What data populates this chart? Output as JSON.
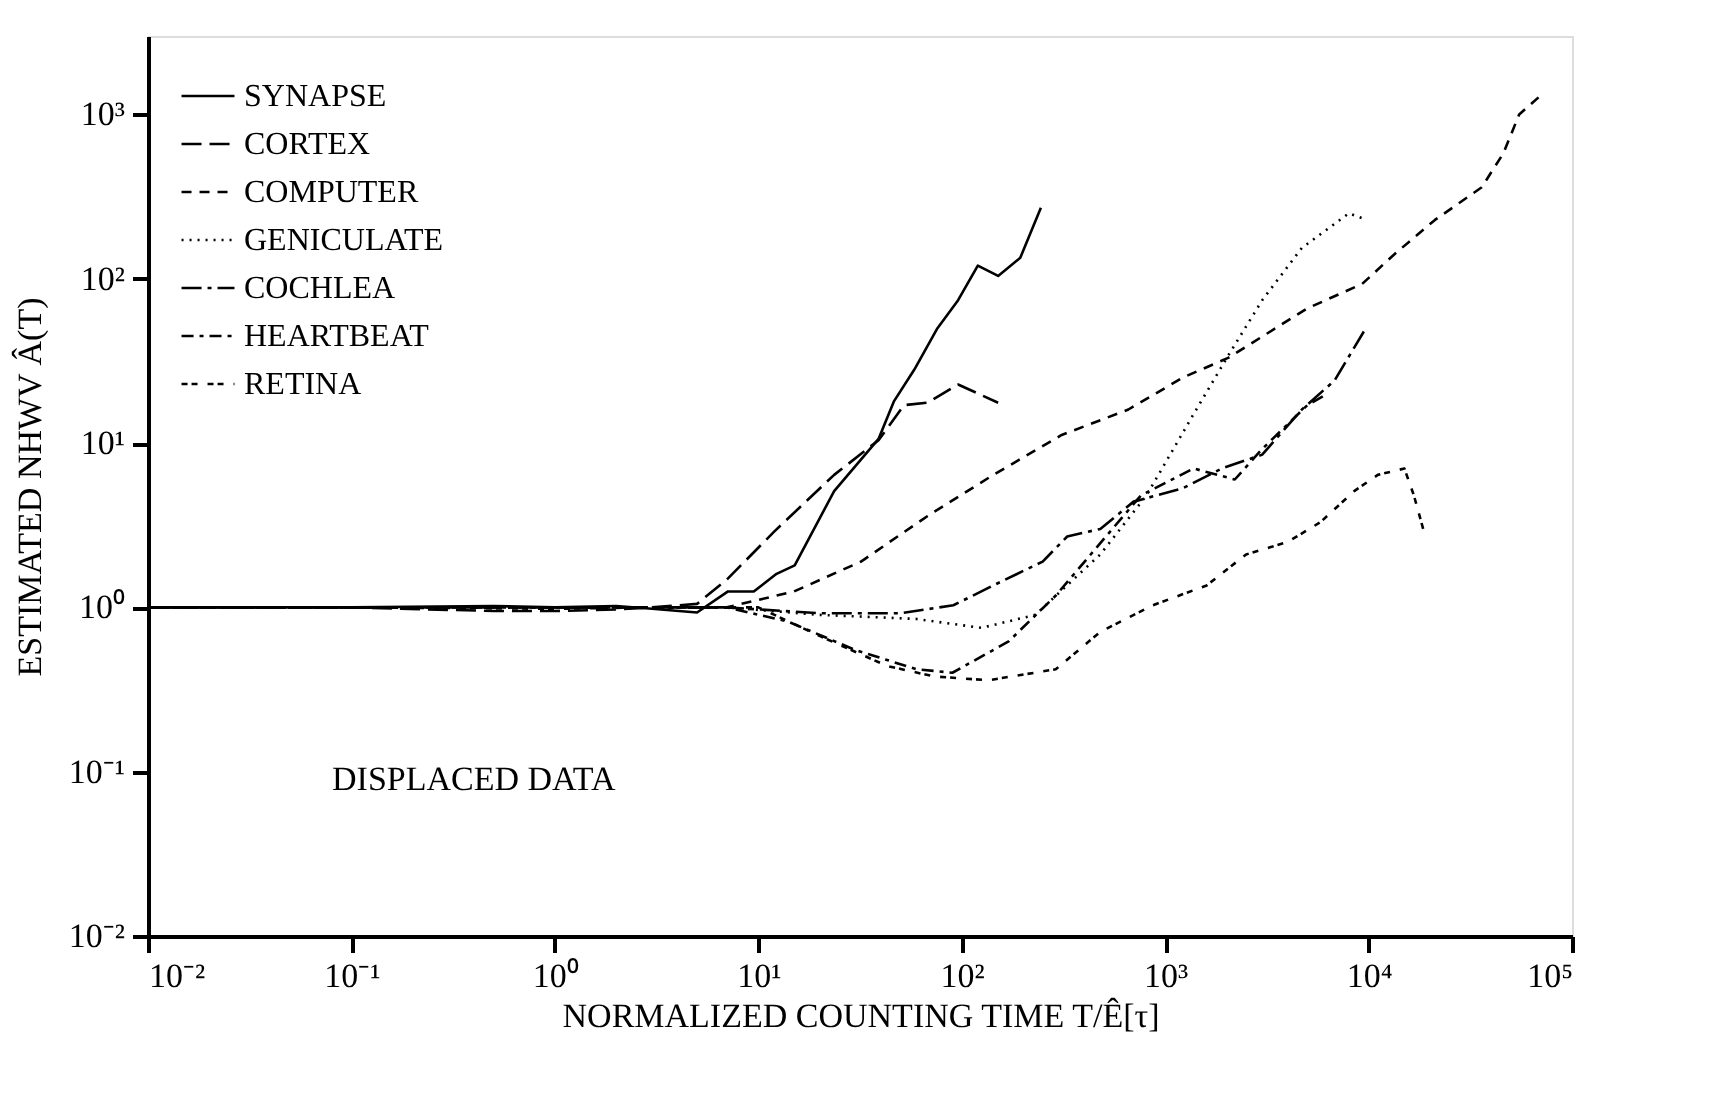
{
  "chart_data": {
    "type": "line",
    "xlabel": "NORMALIZED COUNTING TIME T/Ê[τ]",
    "ylabel": "ESTIMATED NHWV Â(T)",
    "log": "xy",
    "grid": false,
    "legend": "top left",
    "marker": "none",
    "xlim": [
      0.01,
      100000
    ],
    "ylim": [
      0.01,
      3000
    ],
    "xticks": [
      {
        "value": 0.01,
        "label": "10⁻²"
      },
      {
        "value": 0.1,
        "label": "10⁻¹"
      },
      {
        "value": 1,
        "label": "10⁰"
      },
      {
        "value": 10,
        "label": "10¹"
      },
      {
        "value": 100,
        "label": "10²"
      },
      {
        "value": 1000,
        "label": "10³"
      },
      {
        "value": 10000,
        "label": "10⁴"
      },
      {
        "value": 100000,
        "label": "10⁵"
      }
    ],
    "yticks": [
      {
        "value": 0.01,
        "label": "10⁻²"
      },
      {
        "value": 0.1,
        "label": "10⁻¹"
      },
      {
        "value": 1,
        "label": "10⁰"
      },
      {
        "value": 10,
        "label": "10¹"
      },
      {
        "value": 100,
        "label": "10²"
      },
      {
        "value": 1000,
        "label": "10³"
      }
    ],
    "annotations": [
      "DISPLACED DATA"
    ],
    "series": [
      {
        "name": "SYNAPSE",
        "color": "#000000",
        "line_style": "solid",
        "x": [
          0.01,
          0.1,
          0.5,
          1,
          2,
          3,
          5,
          7.1,
          9.5,
          12.3,
          15.1,
          23.6,
          39,
          46.5,
          58.5,
          76,
          96,
          120,
          151,
          194,
          245
        ],
        "values": [
          1,
          1,
          1.02,
          1,
          1.02,
          0.98,
          0.93,
          1.25,
          1.25,
          1.6,
          1.8,
          5.1,
          10.6,
          18,
          28,
          50,
          74,
          120,
          104,
          134,
          270
        ]
      },
      {
        "name": "CORTEX",
        "color": "#000000",
        "line_style": "dashed",
        "x": [
          0.01,
          0.1,
          0.5,
          1,
          2,
          3,
          5,
          7.1,
          12,
          23.6,
          39,
          52,
          68,
          96,
          151
        ],
        "values": [
          1,
          1,
          0.95,
          0.95,
          0.97,
          1,
          1.05,
          1.5,
          2.9,
          6.4,
          10.4,
          17,
          17.6,
          22.7,
          17.6
        ]
      },
      {
        "name": "COMPUTER",
        "color": "#000000",
        "line_style": "dashed",
        "x": [
          0.01,
          0.1,
          1,
          3,
          7,
          15,
          32,
          68,
          143,
          310,
          660,
          1220,
          2040,
          5000,
          9300,
          13400,
          21200,
          36000,
          46000,
          55000,
          70000
        ],
        "values": [
          1,
          1,
          1,
          1,
          1,
          1.25,
          1.9,
          3.6,
          6.4,
          11.2,
          16,
          25,
          33,
          66,
          93,
          141,
          228,
          360,
          580,
          1000,
          1300
        ]
      },
      {
        "name": "GENICULATE",
        "color": "#000000",
        "line_style": "dotted",
        "x": [
          0.01,
          0.1,
          1,
          3,
          7,
          20,
          60,
          125,
          230,
          480,
          810,
          1380,
          2040,
          3000,
          4700,
          8000,
          9600
        ],
        "values": [
          1,
          1,
          1,
          1,
          1,
          0.9,
          0.85,
          0.75,
          0.9,
          2.1,
          4.8,
          15,
          34,
          74,
          154,
          250,
          230
        ]
      },
      {
        "name": "COCHLEA",
        "color": "#000000",
        "line_style": "dashed",
        "x": [
          0.01,
          0.1,
          1,
          3,
          7,
          20,
          50,
          91,
          143,
          250,
          330,
          480,
          700,
          1220,
          1900,
          3000,
          4700,
          6800,
          9600
        ],
        "values": [
          1,
          1,
          1,
          1,
          1,
          0.92,
          0.92,
          1.03,
          1.36,
          1.9,
          2.7,
          3,
          4.4,
          5.3,
          7,
          8.5,
          16,
          24,
          49
        ]
      },
      {
        "name": "HEARTBEAT",
        "color": "#000000",
        "line_style": "dashed",
        "x": [
          0.01,
          0.1,
          1,
          3,
          7,
          14,
          30,
          60,
          90,
          170,
          290,
          760,
          1380,
          2200,
          3000,
          5000,
          6300
        ],
        "values": [
          1,
          1,
          1,
          1,
          1,
          0.82,
          0.55,
          0.42,
          0.4,
          0.62,
          1.18,
          4.8,
          7,
          6,
          9.2,
          17,
          20
        ]
      },
      {
        "name": "RETINA",
        "color": "#000000",
        "line_style": "dashed",
        "x": [
          0.01,
          0.1,
          1,
          3,
          10,
          20,
          43,
          73,
          135,
          290,
          480,
          870,
          1600,
          2500,
          4000,
          5800,
          8500,
          11100,
          15000,
          16700,
          18700
        ],
        "values": [
          1,
          1,
          0.98,
          1,
          1,
          0.67,
          0.44,
          0.38,
          0.36,
          0.42,
          0.71,
          1.03,
          1.36,
          2.1,
          2.5,
          3.3,
          5.1,
          6.4,
          7,
          4.8,
          2.9
        ]
      }
    ]
  }
}
